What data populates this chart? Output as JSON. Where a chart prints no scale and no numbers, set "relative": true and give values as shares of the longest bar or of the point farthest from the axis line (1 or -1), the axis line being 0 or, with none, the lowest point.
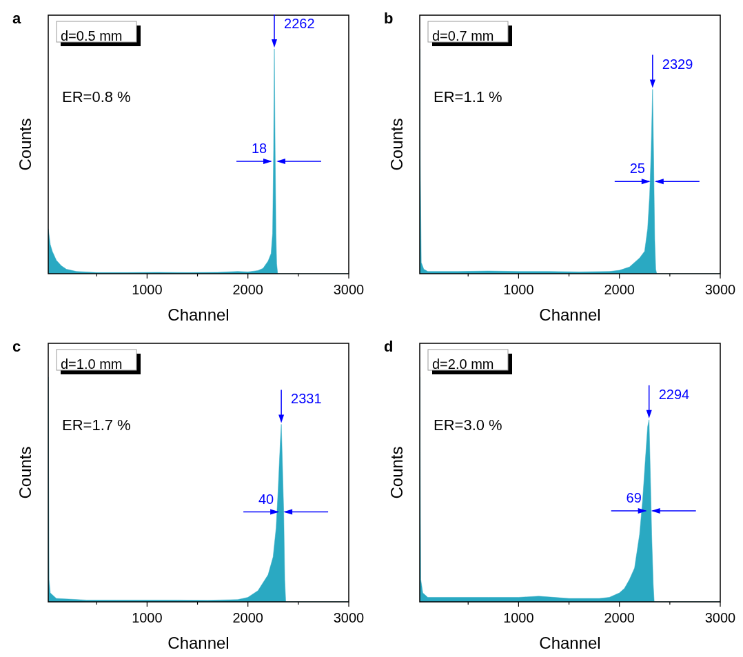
{
  "chart_data": [
    {
      "type": "area",
      "title": "a",
      "xlabel": "Channel",
      "ylabel": "Counts",
      "relative": true,
      "xlim": [
        20,
        3000
      ],
      "xticks": [
        {
          "value": 500,
          "label": null
        },
        1000,
        {
          "value": 1500,
          "label": null
        },
        2000,
        {
          "value": 2500,
          "label": null
        },
        3000
      ],
      "series": [
        {
          "color": "#2aa9c2",
          "x": [
            20,
            40,
            60,
            100,
            150,
            200,
            300,
            500,
            800,
            1100,
            1400,
            1700,
            1900,
            2000,
            2100,
            2150,
            2200,
            2230,
            2245,
            2255,
            2262,
            2270,
            2278,
            2285,
            2295,
            3000
          ],
          "values": [
            0.2,
            0.13,
            0.1,
            0.06,
            0.035,
            0.02,
            0.01,
            0.005,
            0.005,
            0.006,
            0.005,
            0.006,
            0.01,
            0.008,
            0.014,
            0.024,
            0.056,
            0.09,
            0.18,
            0.55,
            1,
            0.55,
            0.18,
            0.045,
            0,
            0
          ]
        }
      ],
      "annotations": [
        "d=0.5 mm",
        "ER=0.8 %",
        {
          "text": "2262",
          "x": 2262,
          "y": 1
        },
        {
          "text": "18",
          "x": 2262,
          "y": 0.5
        }
      ]
    },
    {
      "type": "area",
      "title": "b",
      "xlabel": "Channel",
      "ylabel": "Counts",
      "relative": true,
      "xlim": [
        20,
        3000
      ],
      "xticks": [
        {
          "value": 500,
          "label": null
        },
        1000,
        {
          "value": 1500,
          "label": null
        },
        2000,
        {
          "value": 2500,
          "label": null
        },
        3000
      ],
      "series": [
        {
          "color": "#2aa9c2",
          "x": [
            20,
            25,
            35,
            60,
            100,
            400,
            700,
            1000,
            1300,
            1600,
            1900,
            2000,
            2100,
            2200,
            2250,
            2280,
            2300,
            2315,
            2329,
            2340,
            2350,
            2360,
            2370,
            3000
          ],
          "values": [
            1,
            0.5,
            0.05,
            0.02,
            0.01,
            0.01,
            0.012,
            0.01,
            0.01,
            0.008,
            0.01,
            0.015,
            0.03,
            0.07,
            0.1,
            0.2,
            0.35,
            0.55,
            0.82,
            0.5,
            0.15,
            0.02,
            0,
            0
          ]
        }
      ],
      "annotations": [
        "d=0.7 mm",
        "ER=1.1 %",
        {
          "text": "2329",
          "x": 2329,
          "y": 0.82
        },
        {
          "text": "25",
          "x": 2329,
          "y": 0.41
        }
      ]
    },
    {
      "type": "area",
      "title": "c",
      "xlabel": "Channel",
      "ylabel": "Counts",
      "relative": true,
      "xlim": [
        20,
        3000
      ],
      "xticks": [
        {
          "value": 500,
          "label": null
        },
        1000,
        {
          "value": 1500,
          "label": null
        },
        2000,
        {
          "value": 2500,
          "label": null
        },
        3000
      ],
      "series": [
        {
          "color": "#2aa9c2",
          "x": [
            20,
            28,
            40,
            100,
            400,
            700,
            1000,
            1300,
            1600,
            1900,
            2000,
            2100,
            2200,
            2250,
            2280,
            2300,
            2320,
            2331,
            2340,
            2355,
            2365,
            2375,
            3000
          ],
          "values": [
            1,
            0.1,
            0.04,
            0.015,
            0.008,
            0.008,
            0.008,
            0.008,
            0.007,
            0.01,
            0.02,
            0.05,
            0.12,
            0.2,
            0.33,
            0.5,
            0.7,
            0.79,
            0.65,
            0.4,
            0.1,
            0,
            0
          ]
        }
      ],
      "annotations": [
        "d=1.0 mm",
        "ER=1.7 %",
        {
          "text": "2331",
          "x": 2331,
          "y": 0.79
        },
        {
          "text": "40",
          "x": 2331,
          "y": 0.4
        }
      ]
    },
    {
      "type": "area",
      "title": "d",
      "xlabel": "Channel",
      "ylabel": "Counts",
      "relative": true,
      "xlim": [
        20,
        3000
      ],
      "xticks": [
        {
          "value": 500,
          "label": null
        },
        1000,
        {
          "value": 1500,
          "label": null
        },
        2000,
        {
          "value": 2500,
          "label": null
        },
        3000
      ],
      "series": [
        {
          "color": "#2aa9c2",
          "x": [
            20,
            30,
            50,
            100,
            400,
            700,
            1000,
            1200,
            1500,
            1800,
            1900,
            2000,
            2050,
            2100,
            2150,
            2200,
            2230,
            2260,
            2280,
            2294,
            2305,
            2320,
            2335,
            2345,
            3000
          ],
          "values": [
            1,
            0.1,
            0.04,
            0.02,
            0.02,
            0.02,
            0.02,
            0.025,
            0.015,
            0.015,
            0.02,
            0.04,
            0.06,
            0.1,
            0.15,
            0.3,
            0.45,
            0.65,
            0.78,
            0.81,
            0.6,
            0.3,
            0.08,
            0,
            0
          ]
        }
      ],
      "annotations": [
        "d=2.0 mm",
        "ER=3.0 %",
        {
          "text": "2294",
          "x": 2294,
          "y": 0.81
        },
        {
          "text": "69",
          "x": 2294,
          "y": 0.405
        }
      ]
    }
  ]
}
